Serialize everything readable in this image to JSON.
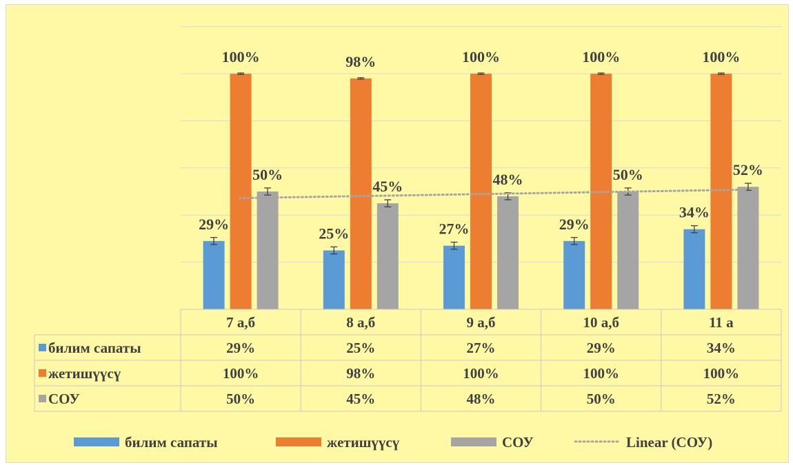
{
  "chart_data": {
    "type": "bar",
    "categories": [
      "7 а,б",
      "8 а,б",
      "9 а,б",
      "10 а,б",
      "11 а"
    ],
    "series": [
      {
        "name": "билим сапаты",
        "values": [
          29,
          25,
          27,
          29,
          34
        ],
        "labels": [
          "29%",
          "25%",
          "27%",
          "29%",
          "34%"
        ],
        "color": "#5b9bd5"
      },
      {
        "name": "жетишүүсү",
        "values": [
          100,
          98,
          100,
          100,
          100
        ],
        "labels": [
          "100%",
          "98%",
          "100%",
          "100%",
          "100%"
        ],
        "color": "#ed7d31"
      },
      {
        "name": "СОУ",
        "values": [
          50,
          45,
          48,
          50,
          52
        ],
        "labels": [
          "50%",
          "45%",
          "48%",
          "50%",
          "52%"
        ],
        "color": "#a5a5a5"
      }
    ],
    "trendline": {
      "name": "Linear (СОУ)",
      "of_series": "СОУ",
      "type": "linear",
      "color": "#a5a5a5",
      "style": "dotted"
    },
    "error_bars": true,
    "ylim": [
      0,
      100
    ],
    "y_axis_labels_shown": false,
    "grid": true,
    "data_table": true,
    "legend_position": "bottom",
    "title": "",
    "xlabel": "",
    "ylabel": ""
  }
}
